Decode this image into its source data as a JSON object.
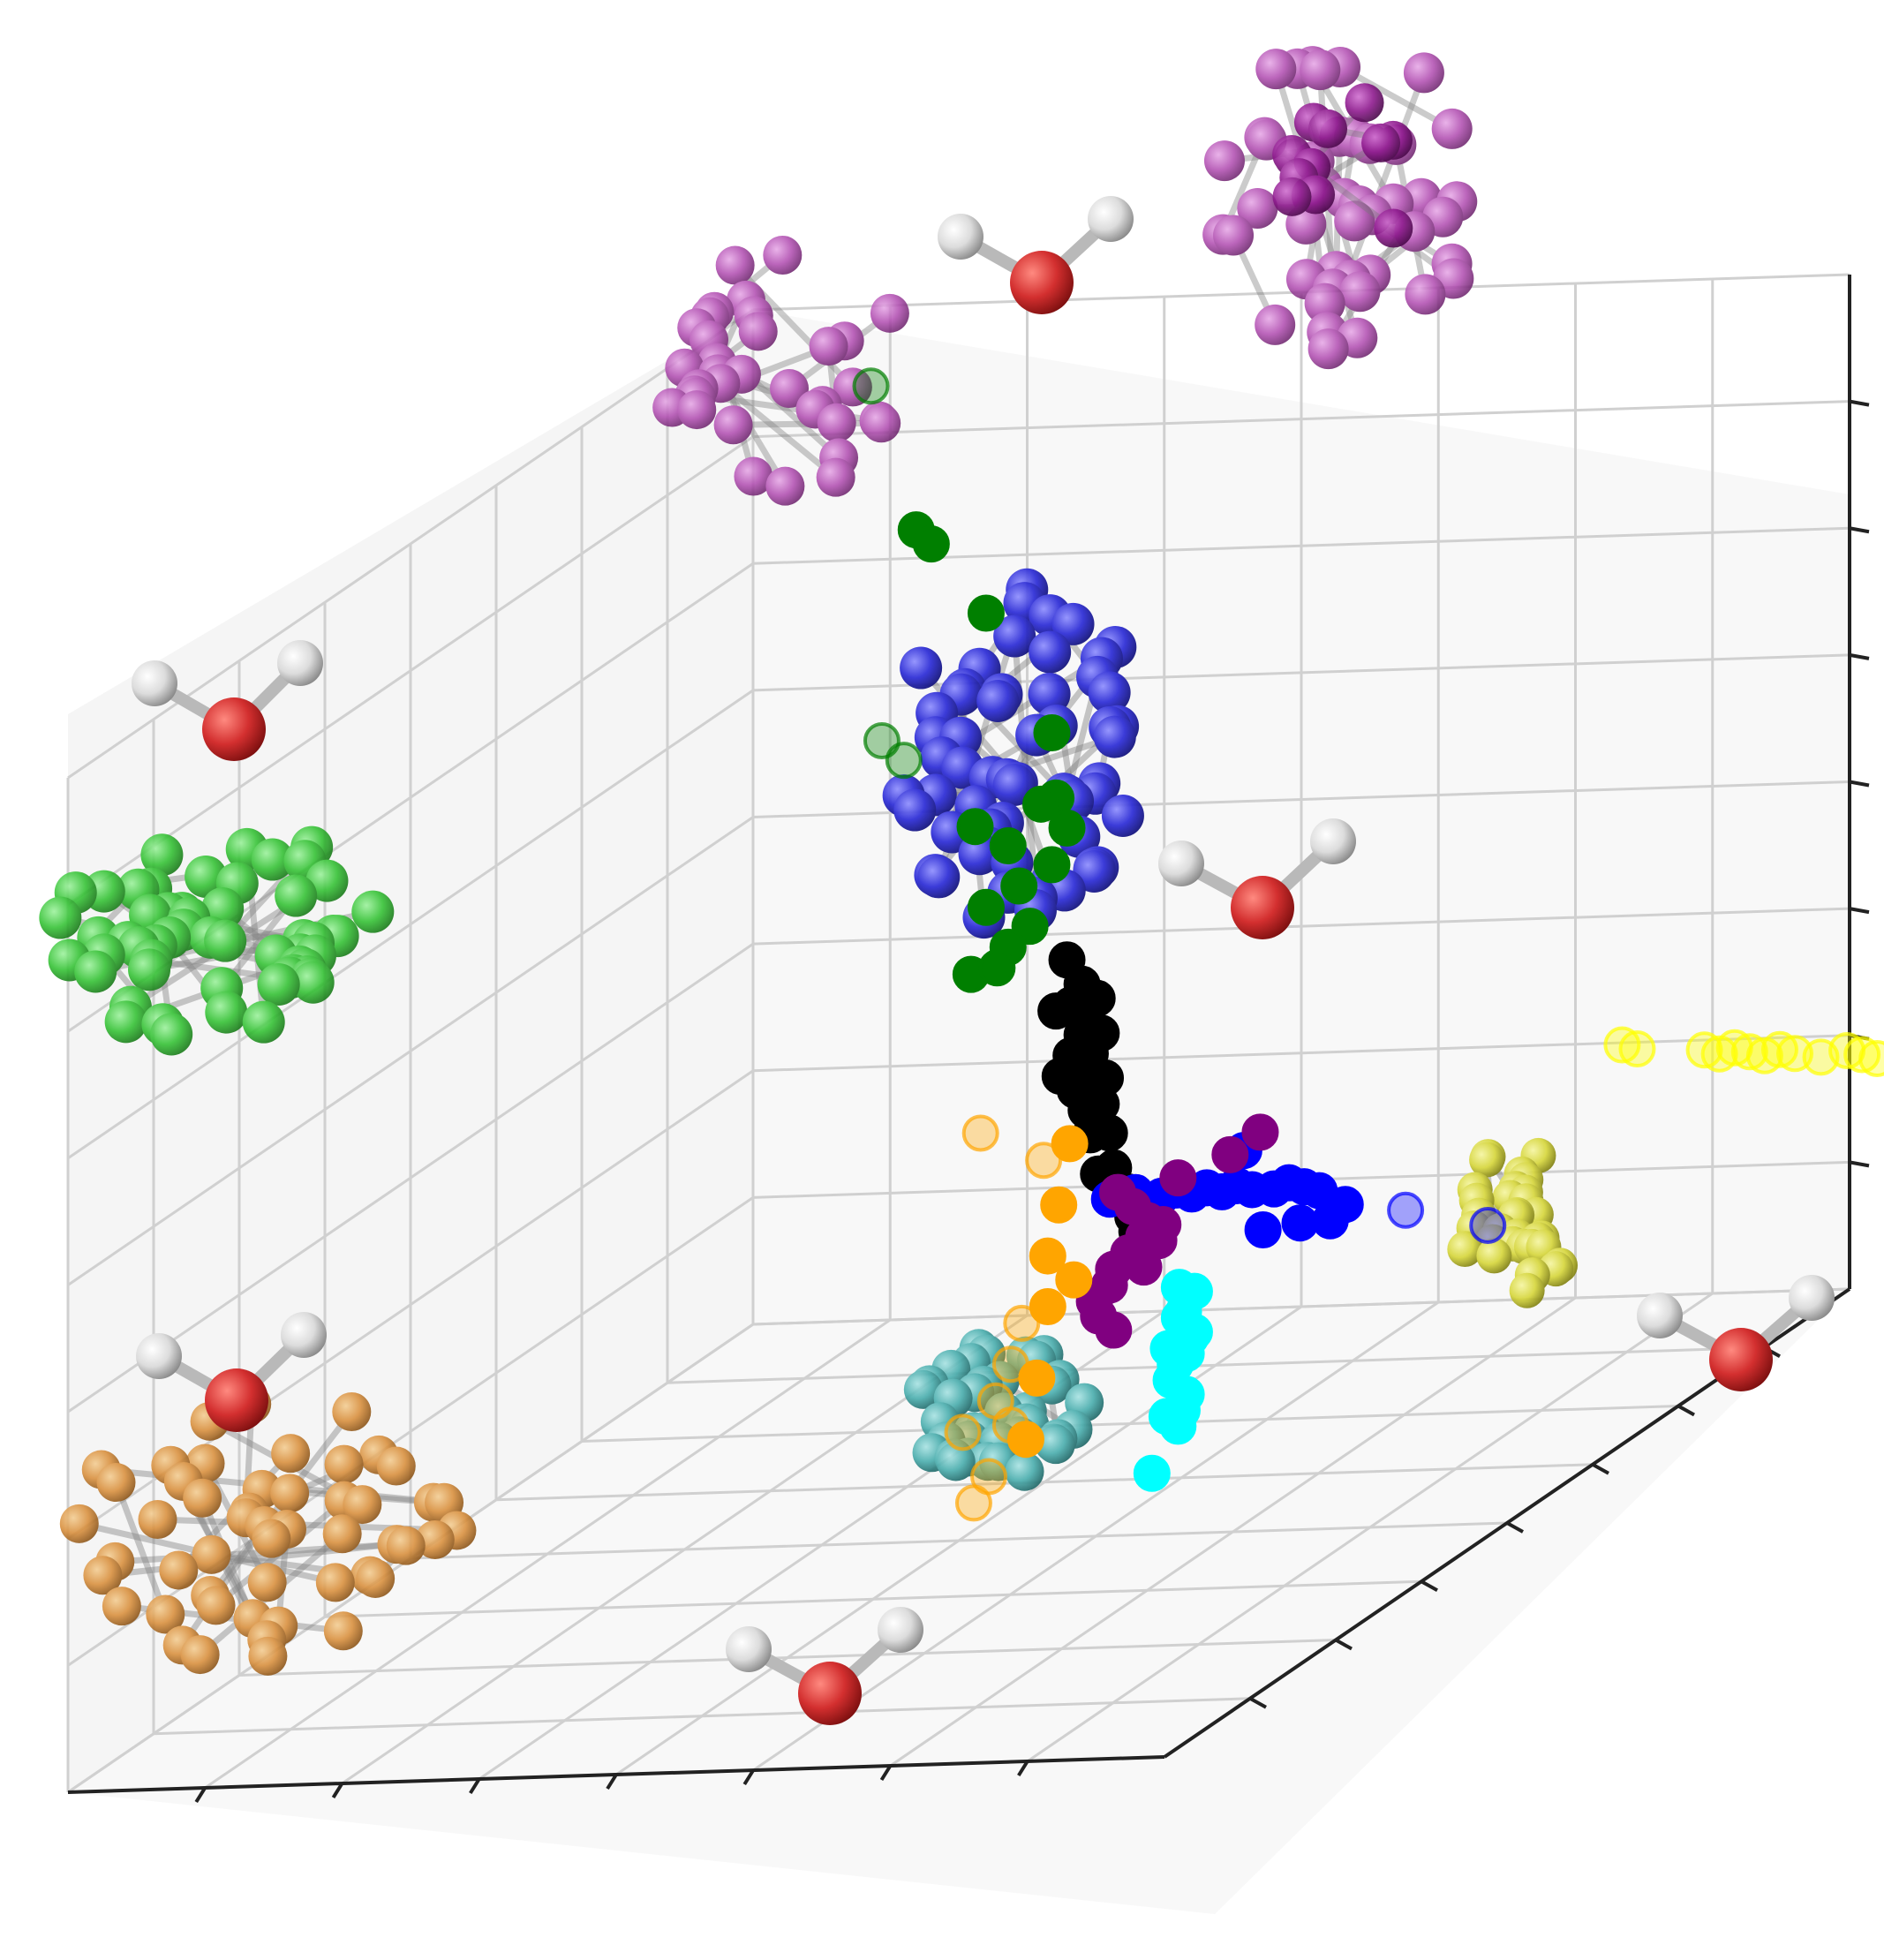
{
  "chart_data": {
    "type": "scatter",
    "dimensions": 3,
    "title": "",
    "xlabel": "",
    "ylabel": "",
    "zlabel": "",
    "tick_labels_shown": false,
    "grid": true,
    "legend": "none",
    "pane_colors": {
      "left": "#ececec",
      "back": "#f2f2f2",
      "floor": "#f5f5f5",
      "grid": "#d0d0d0",
      "axis": "#222222"
    },
    "series": [
      {
        "name": "",
        "color": "#007f00",
        "cluster_glyph": "green-molecule",
        "points": [
          [
            0.12,
            0.02,
            0.93
          ],
          [
            0.18,
            0.05,
            0.8
          ],
          [
            0.2,
            0.06,
            0.79
          ],
          [
            0.25,
            0.06,
            0.72
          ],
          [
            0.31,
            0.06,
            0.6
          ],
          [
            0.13,
            0.02,
            0.58
          ],
          [
            0.15,
            0.02,
            0.56
          ],
          [
            0.32,
            0.07,
            0.54
          ],
          [
            0.3,
            0.06,
            0.53
          ],
          [
            0.24,
            0.06,
            0.51
          ],
          [
            0.33,
            0.07,
            0.51
          ],
          [
            0.27,
            0.06,
            0.49
          ],
          [
            0.31,
            0.06,
            0.47
          ],
          [
            0.28,
            0.06,
            0.45
          ],
          [
            0.25,
            0.06,
            0.43
          ],
          [
            0.29,
            0.06,
            0.41
          ],
          [
            0.27,
            0.06,
            0.39
          ],
          [
            0.23,
            0.05,
            0.36
          ],
          [
            0.26,
            0.06,
            0.37
          ]
        ]
      },
      {
        "name": "",
        "color": "#000000",
        "cluster_glyph": null,
        "points": [
          [
            0.33,
            0.07,
            0.38
          ],
          [
            0.35,
            0.08,
            0.36
          ],
          [
            0.37,
            0.09,
            0.35
          ],
          [
            0.34,
            0.08,
            0.34
          ],
          [
            0.36,
            0.09,
            0.33
          ],
          [
            0.38,
            0.1,
            0.32
          ],
          [
            0.32,
            0.07,
            0.33
          ],
          [
            0.35,
            0.08,
            0.31
          ],
          [
            0.37,
            0.1,
            0.3
          ],
          [
            0.34,
            0.08,
            0.29
          ],
          [
            0.36,
            0.09,
            0.28
          ],
          [
            0.39,
            0.11,
            0.28
          ],
          [
            0.33,
            0.08,
            0.27
          ],
          [
            0.35,
            0.09,
            0.26
          ],
          [
            0.38,
            0.1,
            0.25
          ],
          [
            0.36,
            0.09,
            0.24
          ],
          [
            0.4,
            0.12,
            0.23
          ],
          [
            0.37,
            0.1,
            0.22
          ],
          [
            0.41,
            0.13,
            0.2
          ],
          [
            0.39,
            0.12,
            0.19
          ],
          [
            0.43,
            0.14,
            0.18
          ],
          [
            0.45,
            0.16,
            0.15
          ],
          [
            0.44,
            0.15,
            0.16
          ],
          [
            0.46,
            0.17,
            0.13
          ]
        ]
      },
      {
        "name": "",
        "color": "#0000ff",
        "cluster_glyph": "blue-molecule",
        "points": [
          [
            0.45,
            0.2,
            0.2
          ],
          [
            0.48,
            0.21,
            0.21
          ],
          [
            0.51,
            0.22,
            0.21
          ],
          [
            0.53,
            0.23,
            0.22
          ],
          [
            0.55,
            0.24,
            0.22
          ],
          [
            0.57,
            0.25,
            0.23
          ],
          [
            0.59,
            0.26,
            0.23
          ],
          [
            0.61,
            0.27,
            0.24
          ],
          [
            0.63,
            0.28,
            0.24
          ],
          [
            0.65,
            0.28,
            0.24
          ],
          [
            0.67,
            0.29,
            0.25
          ],
          [
            0.69,
            0.3,
            0.25
          ],
          [
            0.71,
            0.31,
            0.25
          ],
          [
            0.64,
            0.28,
            0.2
          ],
          [
            0.68,
            0.29,
            0.21
          ],
          [
            0.72,
            0.31,
            0.22
          ],
          [
            0.61,
            0.26,
            0.27
          ],
          [
            0.74,
            0.32,
            0.24
          ],
          [
            0.82,
            0.36,
            0.25
          ],
          [
            0.92,
            0.4,
            0.25
          ]
        ]
      },
      {
        "name": "",
        "color": "#800080",
        "cluster_glyph": "purple-molecule",
        "points": [
          [
            0.42,
            0.14,
            0.18
          ],
          [
            0.44,
            0.15,
            0.17
          ],
          [
            0.46,
            0.16,
            0.16
          ],
          [
            0.48,
            0.17,
            0.16
          ],
          [
            0.47,
            0.16,
            0.14
          ],
          [
            0.45,
            0.15,
            0.14
          ],
          [
            0.43,
            0.14,
            0.12
          ],
          [
            0.45,
            0.15,
            0.11
          ],
          [
            0.41,
            0.13,
            0.1
          ],
          [
            0.4,
            0.12,
            0.08
          ],
          [
            0.38,
            0.11,
            0.06
          ],
          [
            0.39,
            0.12,
            0.05
          ],
          [
            0.41,
            0.13,
            0.04
          ],
          [
            0.5,
            0.18,
            0.21
          ],
          [
            0.56,
            0.2,
            0.24
          ],
          [
            0.6,
            0.22,
            0.27
          ]
        ]
      },
      {
        "name": "",
        "color": "#00ffff",
        "cluster_glyph": "teal-molecule",
        "points": [
          [
            0.47,
            0.13,
            0.08
          ],
          [
            0.49,
            0.14,
            0.08
          ],
          [
            0.48,
            0.14,
            0.06
          ],
          [
            0.47,
            0.13,
            0.05
          ],
          [
            0.49,
            0.14,
            0.04
          ],
          [
            0.48,
            0.13,
            0.03
          ],
          [
            0.46,
            0.13,
            0.02
          ],
          [
            0.47,
            0.12,
            0.01
          ],
          [
            0.46,
            0.12,
            0.0
          ],
          [
            0.45,
            0.11,
            -0.02
          ],
          [
            0.47,
            0.12,
            -0.03
          ],
          [
            0.46,
            0.11,
            -0.05
          ],
          [
            0.44,
            0.1,
            -0.06
          ],
          [
            0.45,
            0.1,
            -0.07
          ],
          [
            0.42,
            0.09,
            -0.12
          ]
        ]
      },
      {
        "name": "",
        "color": "#ffa500",
        "cluster_glyph": "orange-molecule",
        "points": [
          [
            0.22,
            0.02,
            0.19
          ],
          [
            0.29,
            0.04,
            0.17
          ],
          [
            0.32,
            0.05,
            0.19
          ],
          [
            0.31,
            0.05,
            0.13
          ],
          [
            0.3,
            0.05,
            0.08
          ],
          [
            0.33,
            0.06,
            0.06
          ],
          [
            0.3,
            0.05,
            0.03
          ],
          [
            0.27,
            0.04,
            0.01
          ],
          [
            0.26,
            0.04,
            -0.03
          ],
          [
            0.29,
            0.05,
            -0.04
          ],
          [
            0.24,
            0.03,
            -0.07
          ],
          [
            0.26,
            0.04,
            -0.09
          ],
          [
            0.28,
            0.05,
            -0.1
          ],
          [
            0.21,
            0.03,
            -0.1
          ],
          [
            0.24,
            0.04,
            -0.14
          ],
          [
            0.22,
            0.03,
            -0.17
          ]
        ]
      },
      {
        "name": "",
        "color": "#ffff00",
        "cluster_glyph": "yellow-molecule",
        "points": [
          [
            1.08,
            0.46,
            0.45
          ],
          [
            1.1,
            0.47,
            0.45
          ],
          [
            1.18,
            0.5,
            0.46
          ],
          [
            1.2,
            0.51,
            0.46
          ],
          [
            1.22,
            0.52,
            0.47
          ],
          [
            1.24,
            0.53,
            0.47
          ],
          [
            1.26,
            0.54,
            0.47
          ],
          [
            1.28,
            0.55,
            0.48
          ],
          [
            1.3,
            0.56,
            0.48
          ],
          [
            1.33,
            0.57,
            0.48
          ],
          [
            1.36,
            0.58,
            0.49
          ],
          [
            1.38,
            0.59,
            0.49
          ],
          [
            1.4,
            0.6,
            0.49
          ],
          [
            1.53,
            0.65,
            0.52
          ]
        ]
      }
    ],
    "decorations": {
      "water_molecules": 7,
      "clusters": [
        "purple-molecule-left",
        "purple-molecule-right",
        "blue-molecule",
        "green-molecule",
        "orange-molecule",
        "teal-molecule",
        "yellow-molecule"
      ]
    }
  }
}
